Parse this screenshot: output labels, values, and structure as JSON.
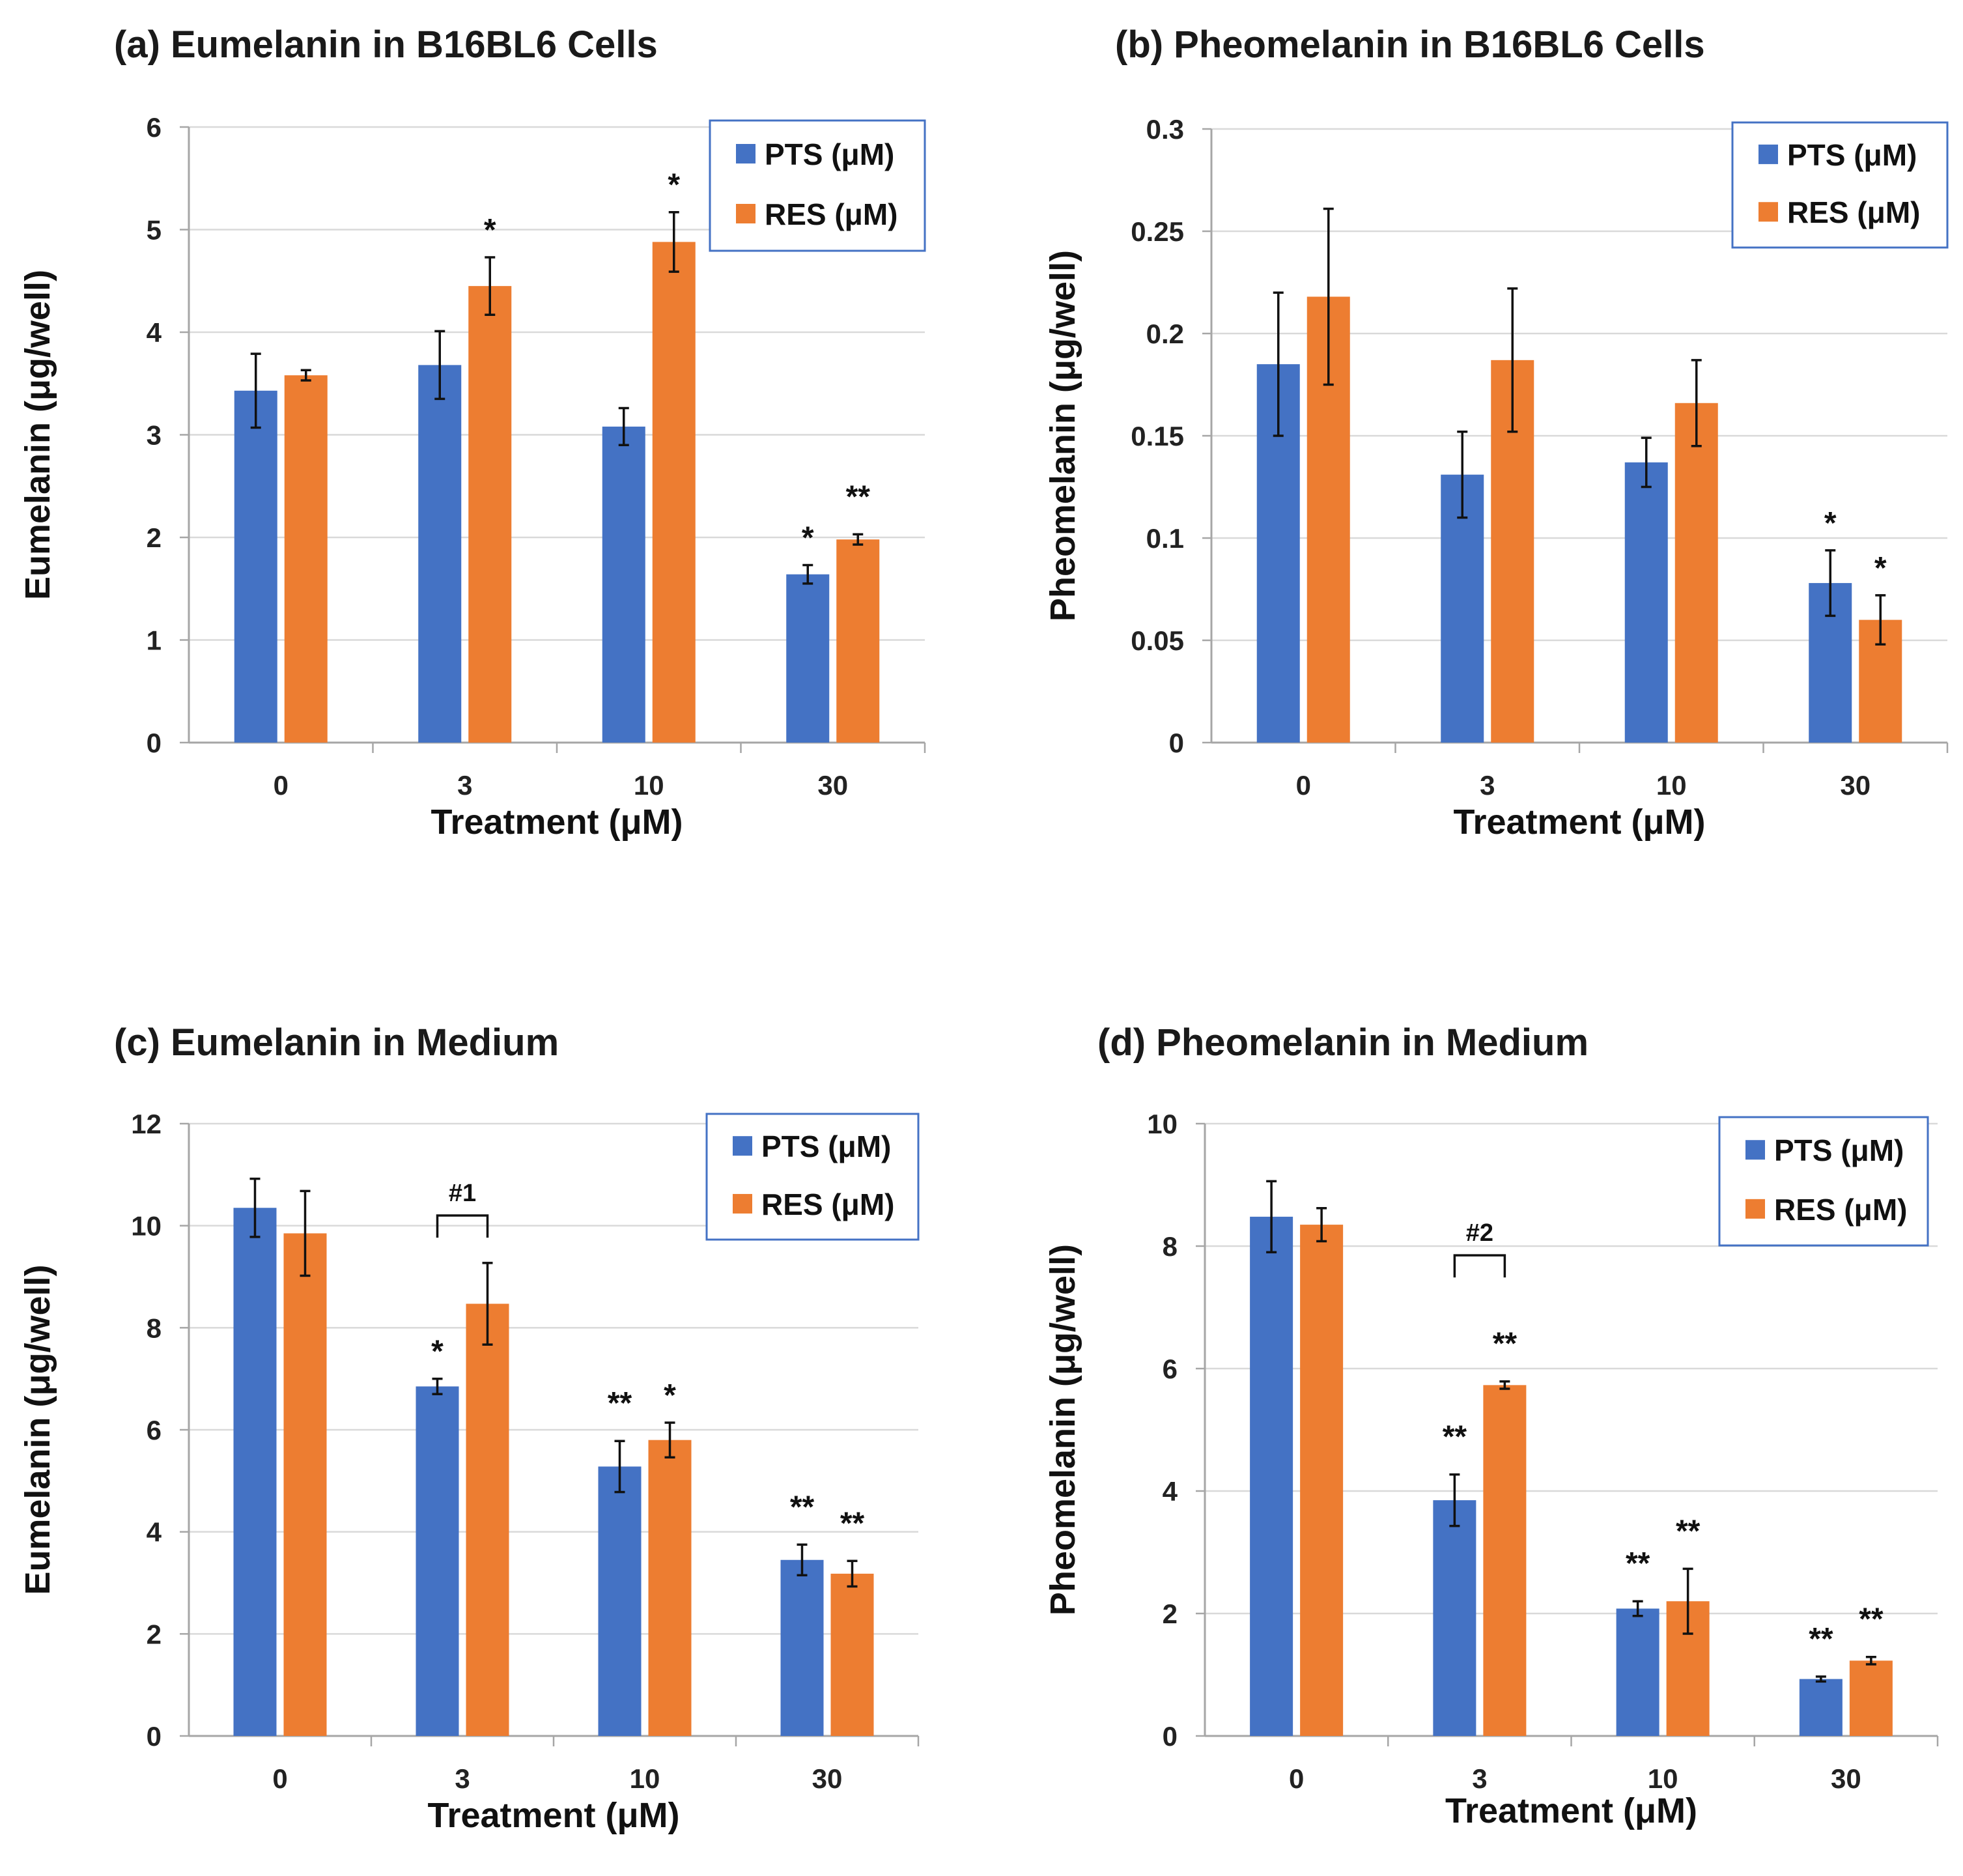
{
  "colors": {
    "pts": "#4472C4",
    "res": "#ED7D31",
    "legend_border": "#4472C4",
    "grid": "#D9D9D9",
    "axis": "#A6A6A6"
  },
  "chart_data": [
    {
      "type": "bar",
      "title": "(a) Eumelanin in B16BL6 Cells",
      "xlabel": "Treatment (μM)",
      "ylabel": "Eumelanin (μg/well)",
      "categories": [
        "0",
        "3",
        "10",
        "30"
      ],
      "ylim": [
        0,
        6
      ],
      "yticks": [
        0,
        1,
        2,
        3,
        4,
        5,
        6
      ],
      "ytick_labels": [
        "0",
        "1",
        "2",
        "3",
        "4",
        "5",
        "6"
      ],
      "series": [
        {
          "name": "PTS (μM)",
          "values": [
            3.43,
            3.68,
            3.08,
            1.64
          ],
          "errors": [
            0.36,
            0.33,
            0.18,
            0.09
          ],
          "annotations": [
            "",
            "",
            "",
            "*"
          ]
        },
        {
          "name": "RES (μM)",
          "values": [
            3.58,
            4.45,
            4.88,
            1.98
          ],
          "errors": [
            0.05,
            0.28,
            0.29,
            0.05
          ],
          "annotations": [
            "",
            "*",
            "*",
            "**"
          ]
        }
      ],
      "legend": "top-right",
      "grid": true
    },
    {
      "type": "bar",
      "title": "(b) Pheomelanin in B16BL6 Cells",
      "xlabel": "Treatment (μM)",
      "ylabel": "Pheomelanin (μg/well)",
      "categories": [
        "0",
        "3",
        "10",
        "30"
      ],
      "ylim": [
        0,
        0.3
      ],
      "yticks": [
        0,
        0.05,
        0.1,
        0.15,
        0.2,
        0.25,
        0.3
      ],
      "ytick_labels": [
        "0",
        "0.05",
        "0.1",
        "0.15",
        "0.2",
        "0.25",
        "0.3"
      ],
      "series": [
        {
          "name": "PTS (μM)",
          "values": [
            0.185,
            0.131,
            0.137,
            0.078
          ],
          "errors": [
            0.035,
            0.021,
            0.012,
            0.016
          ],
          "annotations": [
            "",
            "",
            "",
            "*"
          ]
        },
        {
          "name": "RES (μM)",
          "values": [
            0.218,
            0.187,
            0.166,
            0.06
          ],
          "errors": [
            0.043,
            0.035,
            0.021,
            0.012
          ],
          "annotations": [
            "",
            "",
            "",
            "*"
          ]
        }
      ],
      "legend": "top-right",
      "grid": true
    },
    {
      "type": "bar",
      "title": "(c) Eumelanin in Medium",
      "xlabel": "Treatment (μM)",
      "ylabel": "Eumelanin (μg/well)",
      "categories": [
        "0",
        "3",
        "10",
        "30"
      ],
      "ylim": [
        0,
        12
      ],
      "yticks": [
        0,
        2,
        4,
        6,
        8,
        10,
        12
      ],
      "ytick_labels": [
        "0",
        "2",
        "4",
        "6",
        "8",
        "10",
        "12"
      ],
      "series": [
        {
          "name": "PTS (μM)",
          "values": [
            10.35,
            6.85,
            5.28,
            3.45
          ],
          "errors": [
            0.57,
            0.15,
            0.5,
            0.3
          ],
          "annotations": [
            "",
            "*",
            "**",
            "**"
          ]
        },
        {
          "name": "RES (μM)",
          "values": [
            9.85,
            8.47,
            5.8,
            3.18
          ],
          "errors": [
            0.83,
            0.8,
            0.34,
            0.25
          ],
          "annotations": [
            "",
            "",
            "*",
            "**"
          ]
        }
      ],
      "brackets": [
        {
          "category": "3",
          "label": "#1",
          "y": 10.2
        }
      ],
      "legend": "top-right",
      "grid": true
    },
    {
      "type": "bar",
      "title": "(d) Pheomelanin in Medium",
      "xlabel": "Treatment (μM)",
      "ylabel": "Pheomelanin (μg/well)",
      "categories": [
        "0",
        "3",
        "10",
        "30"
      ],
      "ylim": [
        0,
        10
      ],
      "yticks": [
        0,
        2,
        4,
        6,
        8,
        10
      ],
      "ytick_labels": [
        "0",
        "2",
        "4",
        "6",
        "8",
        "10"
      ],
      "series": [
        {
          "name": "PTS (μM)",
          "values": [
            8.48,
            3.85,
            2.08,
            0.93
          ],
          "errors": [
            0.58,
            0.42,
            0.12,
            0.04
          ],
          "annotations": [
            "",
            "**",
            "**",
            "**"
          ]
        },
        {
          "name": "RES (μM)",
          "values": [
            8.35,
            5.73,
            2.2,
            1.23
          ],
          "errors": [
            0.27,
            0.06,
            0.53,
            0.06
          ],
          "annotations": [
            "",
            "**",
            "**",
            "**"
          ]
        }
      ],
      "brackets": [
        {
          "category": "3",
          "label": "#2",
          "y": 7.85
        }
      ],
      "legend": "top-right",
      "grid": true
    }
  ]
}
